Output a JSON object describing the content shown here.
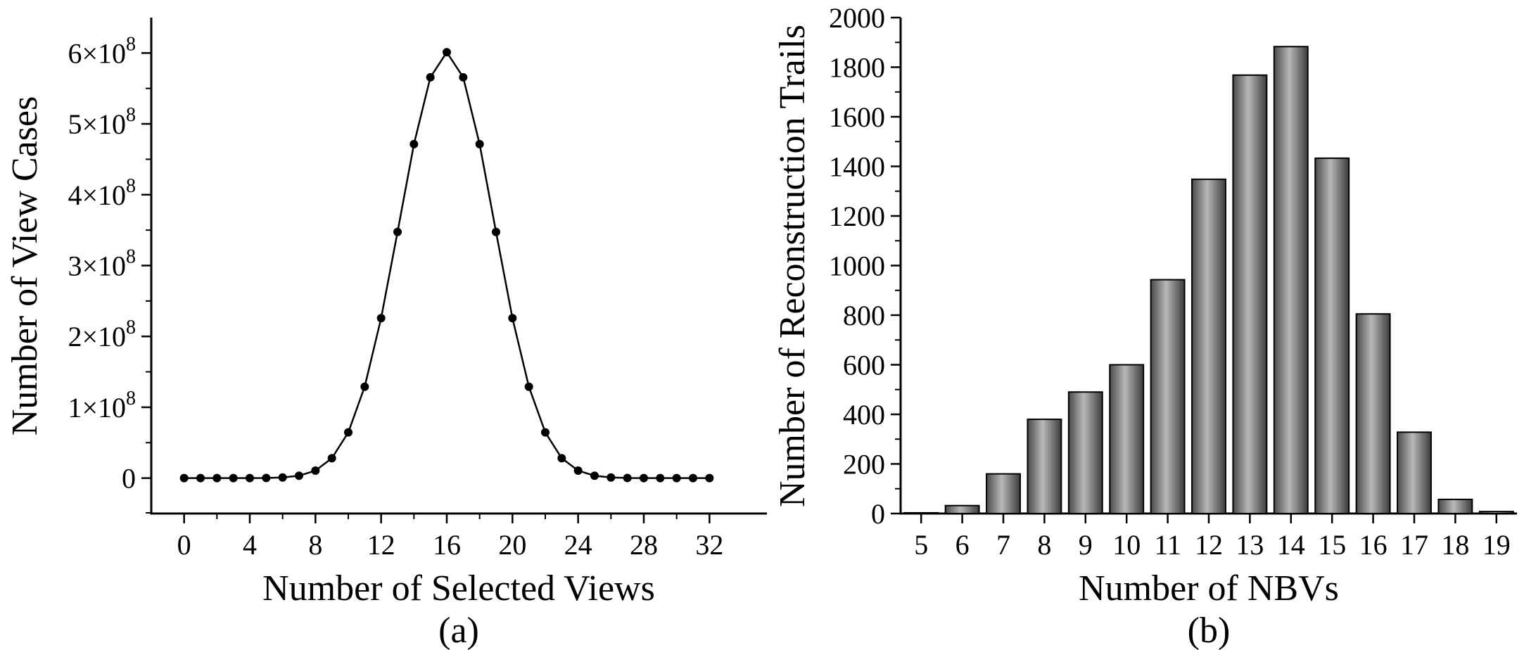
{
  "chart_data": [
    {
      "type": "line",
      "panel_label": "(a)",
      "xlabel": "Number of Selected Views",
      "ylabel": "Number of View Cases",
      "xlim": [
        -2,
        35.5
      ],
      "ylim": [
        -50000000,
        650000000
      ],
      "xticks": [
        0,
        4,
        8,
        12,
        16,
        20,
        24,
        28,
        32
      ],
      "yticks": [
        {
          "value": 0,
          "mant": "0",
          "exp": ""
        },
        {
          "value": 100000000,
          "mant": "1×10",
          "exp": "8"
        },
        {
          "value": 200000000,
          "mant": "2×10",
          "exp": "8"
        },
        {
          "value": 300000000,
          "mant": "3×10",
          "exp": "8"
        },
        {
          "value": 400000000,
          "mant": "4×10",
          "exp": "8"
        },
        {
          "value": 500000000,
          "mant": "5×10",
          "exp": "8"
        },
        {
          "value": 600000000,
          "mant": "6×10",
          "exp": "8"
        }
      ],
      "grid": false,
      "markers": true,
      "color": "#000000",
      "x": [
        0,
        1,
        2,
        3,
        4,
        5,
        6,
        7,
        8,
        9,
        10,
        11,
        12,
        13,
        14,
        15,
        16,
        17,
        18,
        19,
        20,
        21,
        22,
        23,
        24,
        25,
        26,
        27,
        28,
        29,
        30,
        31,
        32
      ],
      "y": [
        1,
        32,
        496,
        4960,
        35960,
        201376,
        906192,
        3365856,
        10518300,
        28048800,
        64512240,
        129024480,
        225792840,
        347373600,
        471435600,
        565722720,
        601080390,
        565722720,
        471435600,
        347373600,
        225792840,
        129024480,
        64512240,
        28048800,
        10518300,
        3365856,
        906192,
        201376,
        35960,
        4960,
        496,
        32,
        1
      ]
    },
    {
      "type": "bar",
      "panel_label": "(b)",
      "xlabel": "Number of NBVs",
      "ylabel": "Number of Reconstruction Trails",
      "ylim": [
        0,
        2000
      ],
      "yticks": [
        0,
        200,
        400,
        600,
        800,
        1000,
        1200,
        1400,
        1600,
        1800,
        2000
      ],
      "grid": false,
      "bar_color": "#6e6e6e",
      "categories": [
        "5",
        "6",
        "7",
        "8",
        "9",
        "10",
        "11",
        "12",
        "13",
        "14",
        "15",
        "16",
        "17",
        "18",
        "19"
      ],
      "values": [
        3,
        32,
        160,
        380,
        490,
        600,
        943,
        1348,
        1768,
        1883,
        1433,
        805,
        328,
        57,
        8
      ]
    }
  ]
}
